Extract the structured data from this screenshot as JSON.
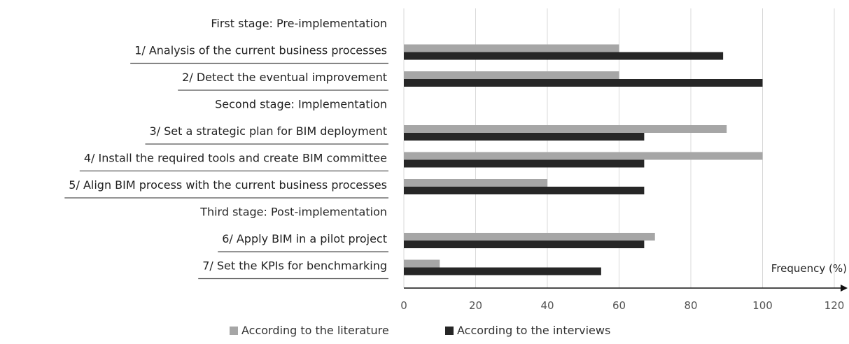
{
  "chart_data": {
    "type": "bar",
    "orientation": "horizontal",
    "xlabel": "Frequency (%)",
    "xlim": [
      0,
      120
    ],
    "xticks": [
      0,
      20,
      40,
      60,
      80,
      100,
      120
    ],
    "grid": true,
    "legend_position": "bottom",
    "rows": [
      {
        "label": "First stage: Pre-implementation",
        "kind": "stage"
      },
      {
        "label": "1/ Analysis of the current business processes",
        "kind": "item",
        "values": [
          60,
          89
        ]
      },
      {
        "label": "2/ Detect the eventual improvement",
        "kind": "item",
        "values": [
          60,
          100
        ]
      },
      {
        "label": "Second stage: Implementation",
        "kind": "stage"
      },
      {
        "label": "3/ Set a strategic plan for BIM deployment",
        "kind": "item",
        "values": [
          90,
          67
        ]
      },
      {
        "label": "4/ Install the required tools and create BIM committee",
        "kind": "item",
        "values": [
          100,
          67
        ]
      },
      {
        "label": "5/ Align BIM process with the current business processes",
        "kind": "item",
        "values": [
          40,
          67
        ]
      },
      {
        "label": "Third stage: Post-implementation",
        "kind": "stage"
      },
      {
        "label": "6/ Apply BIM in a pilot project",
        "kind": "item",
        "values": [
          70,
          67
        ]
      },
      {
        "label": "7/ Set the KPIs for benchmarking",
        "kind": "item",
        "values": [
          10,
          55
        ]
      }
    ],
    "series": [
      {
        "name": "According to the literature",
        "color": "#a6a6a6"
      },
      {
        "name": "According to the interviews",
        "color": "#262626"
      }
    ]
  }
}
